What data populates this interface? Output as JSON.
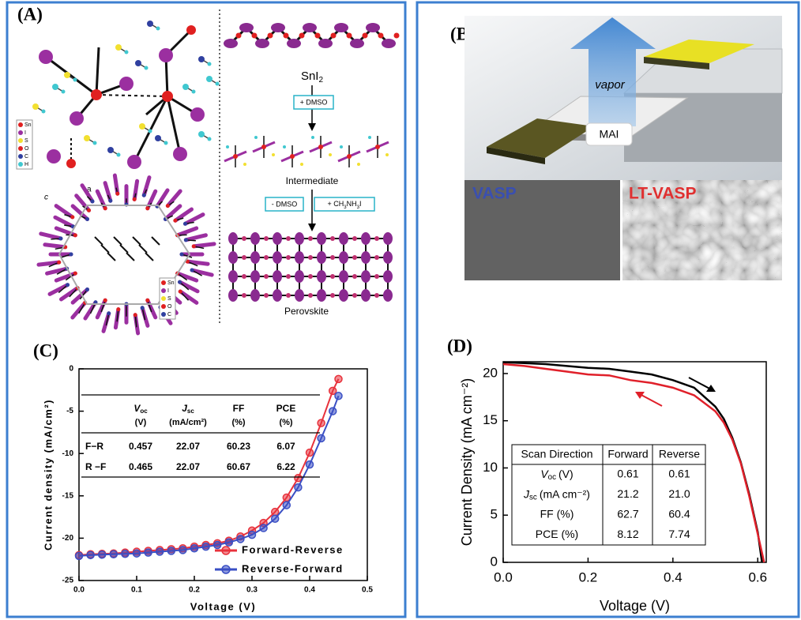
{
  "panels": {
    "a": {
      "label": "(A)",
      "legend_top": [
        "Sn",
        "I",
        "S",
        "O",
        "C",
        "H"
      ],
      "legend_bottom": [
        "Sn",
        "I",
        "S",
        "O",
        "C"
      ],
      "axis_a": "a",
      "axis_c": "c",
      "sni2": {
        "base": "SnI",
        "sub": "2"
      },
      "step1": "+ DMSO",
      "intermediate": "Intermediate",
      "step2a": "- DMSO",
      "step2b": {
        "pre": "+ CH",
        "s1": "3",
        "mid": "NH",
        "s2": "3",
        "post": "I"
      },
      "perovskite": "Perovskite"
    },
    "b": {
      "label": "(B)",
      "vapor": "vapor",
      "mai": "MAI",
      "vasp": "VASP",
      "ltvasp": "LT-VASP"
    },
    "c": {
      "label": "(C)"
    },
    "d": {
      "label": "(D)"
    }
  },
  "chart_data": [
    {
      "type": "line",
      "xlabel": "Voltage (V)",
      "ylabel": "Current density (mA/cm²)",
      "x": [
        0,
        0.02,
        0.04,
        0.06,
        0.08,
        0.1,
        0.12,
        0.14,
        0.16,
        0.18,
        0.2,
        0.22,
        0.24,
        0.26,
        0.28,
        0.3,
        0.32,
        0.34,
        0.36,
        0.38,
        0.4,
        0.42,
        0.44,
        0.45
      ],
      "series": [
        {
          "name": "Forward-Reverse",
          "color": "#e8323c",
          "values": [
            -22.0,
            -21.9,
            -21.85,
            -21.8,
            -21.7,
            -21.6,
            -21.5,
            -21.4,
            -21.3,
            -21.2,
            -21.0,
            -20.8,
            -20.6,
            -20.3,
            -19.8,
            -19.1,
            -18.2,
            -16.9,
            -15.2,
            -12.9,
            -9.9,
            -6.4,
            -2.6,
            -1.2
          ]
        },
        {
          "name": "Reverse-Forward",
          "color": "#3a4fc4",
          "values": [
            -22.1,
            -22.0,
            -21.95,
            -21.9,
            -21.85,
            -21.8,
            -21.7,
            -21.6,
            -21.5,
            -21.4,
            -21.2,
            -21.0,
            -20.8,
            -20.5,
            -20.1,
            -19.6,
            -18.8,
            -17.7,
            -16.1,
            -14.0,
            -11.3,
            -8.2,
            -5.0,
            -3.2
          ]
        }
      ],
      "xlim": [
        0,
        0.5
      ],
      "xticks": [
        {
          "value": 0,
          "label": "0.0"
        },
        {
          "value": 0.1,
          "label": "0.1"
        },
        {
          "value": 0.2,
          "label": "0.2"
        },
        {
          "value": 0.3,
          "label": "0.3"
        },
        {
          "value": 0.4,
          "label": "0.4"
        },
        {
          "value": 0.5,
          "label": "0.5"
        }
      ],
      "ylim": [
        -25,
        0
      ],
      "yticks": [
        0,
        -5,
        -10,
        -15,
        -20,
        -25
      ],
      "markers": true,
      "legend": "lower right",
      "table": {
        "columns": [
          {
            "symbol": "V",
            "sub": "oc",
            "unit": "(V)"
          },
          {
            "symbol": "J",
            "sub": "sc",
            "unit": "(mA/cm²)"
          },
          {
            "symbol": "FF",
            "unit": "(%)"
          },
          {
            "symbol": "PCE",
            "unit": "(%)"
          }
        ],
        "rows": [
          {
            "label": "F−R",
            "cells": [
              "0.457",
              "22.07",
              "60.23",
              "6.07"
            ]
          },
          {
            "label": "R −F",
            "cells": [
              "0.465",
              "22.07",
              "60.67",
              "6.22"
            ]
          }
        ]
      }
    },
    {
      "type": "line",
      "xlabel": "Voltage (V)",
      "ylabel": "Current Density (mA cm⁻²)",
      "series": [
        {
          "color": "#000000",
          "x": [
            0,
            0.05,
            0.1,
            0.15,
            0.2,
            0.25,
            0.3,
            0.35,
            0.4,
            0.45,
            0.5,
            0.52,
            0.54,
            0.56,
            0.58,
            0.6,
            0.61
          ],
          "values": [
            21.2,
            21.1,
            21.0,
            20.8,
            20.6,
            20.5,
            20.2,
            19.9,
            19.3,
            18.5,
            16.5,
            15.2,
            13.2,
            10.6,
            7.2,
            3.2,
            0
          ]
        },
        {
          "color": "#e0202a",
          "x": [
            0,
            0.05,
            0.1,
            0.15,
            0.2,
            0.25,
            0.3,
            0.35,
            0.4,
            0.45,
            0.5,
            0.52,
            0.54,
            0.56,
            0.58,
            0.6,
            0.615
          ],
          "values": [
            21.0,
            20.8,
            20.5,
            20.2,
            19.9,
            19.8,
            19.3,
            19.0,
            18.5,
            17.7,
            16.0,
            14.8,
            13.0,
            10.5,
            7.0,
            3.0,
            0
          ]
        }
      ],
      "xlim": [
        0,
        0.62
      ],
      "xticks": [
        {
          "value": 0,
          "label": "0.0"
        },
        {
          "value": 0.2,
          "label": "0.2"
        },
        {
          "value": 0.4,
          "label": "0.4"
        },
        {
          "value": 0.6,
          "label": "0.6"
        }
      ],
      "ylim": [
        0,
        21.25
      ],
      "yticks": [
        0,
        5,
        10,
        15,
        20
      ],
      "markers": false,
      "table": {
        "columns": [
          "Scan Direction",
          "Forward",
          "Reverse"
        ],
        "rows": [
          {
            "label": {
              "symbol": "V",
              "sub": "oc",
              "unit": "(V)"
            },
            "cells": [
              "0.61",
              "0.61"
            ]
          },
          {
            "label": {
              "symbol": "J",
              "sub": "sc",
              "unit": "(mA cm⁻²)"
            },
            "cells": [
              "21.2",
              "21.0"
            ]
          },
          {
            "label": "FF (%)",
            "cells": [
              "62.7",
              "60.4"
            ]
          },
          {
            "label": "PCE (%)",
            "cells": [
              "8.12",
              "7.74"
            ]
          }
        ]
      }
    }
  ]
}
